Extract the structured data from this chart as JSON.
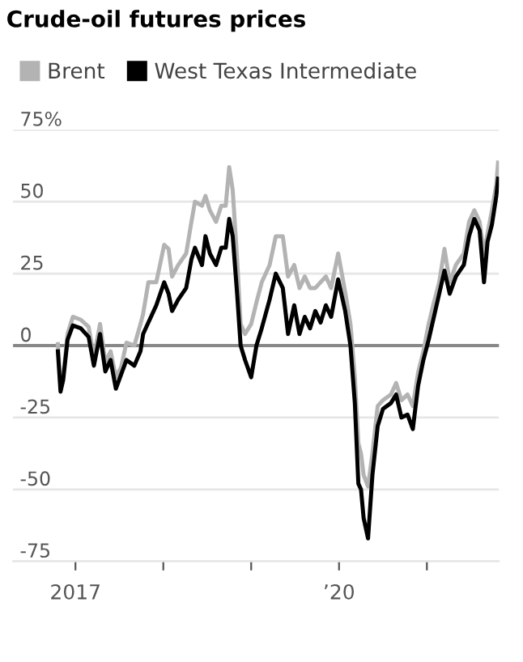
{
  "chart_data": {
    "type": "line",
    "title": "Crude-oil futures prices",
    "x": [
      2016.8,
      2016.83,
      2016.86,
      2016.91,
      2016.97,
      2017.06,
      2017.15,
      2017.21,
      2017.28,
      2017.34,
      2017.4,
      2017.46,
      2017.52,
      2017.58,
      2017.67,
      2017.74,
      2017.77,
      2017.83,
      2017.92,
      2018.01,
      2018.06,
      2018.1,
      2018.17,
      2018.26,
      2018.32,
      2018.36,
      2018.44,
      2018.48,
      2018.53,
      2018.6,
      2018.66,
      2018.71,
      2018.75,
      2018.79,
      2018.84,
      2018.88,
      2018.93,
      2019.0,
      2019.06,
      2019.12,
      2019.21,
      2019.28,
      2019.36,
      2019.42,
      2019.49,
      2019.55,
      2019.61,
      2019.67,
      2019.73,
      2019.79,
      2019.85,
      2019.91,
      2019.99,
      2020.07,
      2020.13,
      2020.18,
      2020.22,
      2020.25,
      2020.28,
      2020.33,
      2020.38,
      2020.44,
      2020.5,
      2020.59,
      2020.65,
      2020.71,
      2020.78,
      2020.84,
      2020.9,
      2020.96,
      2021.02,
      2021.08,
      2021.14,
      2021.2,
      2021.26,
      2021.33,
      2021.42,
      2021.48,
      2021.54,
      2021.6,
      2021.65,
      2021.69,
      2021.74,
      2021.79,
      2021.81
    ],
    "series": [
      {
        "name": "Brent",
        "color": "#b3b3b3",
        "values": [
          0.5,
          -14,
          -11,
          4,
          10,
          9,
          6.5,
          -4,
          7.5,
          -6,
          -2,
          -11,
          -7.5,
          1,
          0,
          7.5,
          11,
          22,
          22,
          35,
          33.6,
          24,
          28,
          32,
          43,
          50,
          48.6,
          52,
          47,
          43,
          48.6,
          48.6,
          62,
          54,
          30,
          7.5,
          4,
          7.5,
          15,
          22,
          28,
          38,
          38,
          24,
          28,
          20,
          24,
          20,
          20,
          22,
          24,
          20,
          32,
          18.6,
          7.5,
          -11,
          -34,
          -37.5,
          -45,
          -49,
          -37.5,
          -21,
          -19,
          -17,
          -13,
          -19,
          -17,
          -21,
          -9.4,
          -2,
          7.5,
          15,
          22,
          33.6,
          22,
          28,
          32,
          43,
          47,
          43,
          32,
          39,
          47,
          56,
          63.6
        ]
      },
      {
        "name": "West Texas Intermediate",
        "color": "#000000",
        "values": [
          -2,
          -16,
          -12,
          2,
          7,
          6,
          3,
          -7,
          4,
          -9,
          -5,
          -15,
          -10,
          -5,
          -7,
          -2,
          4,
          8,
          14,
          22,
          18,
          12,
          16,
          20,
          30,
          34,
          28,
          38,
          32,
          28,
          34,
          34,
          44,
          38,
          18,
          0,
          -5,
          -11,
          0,
          6,
          16,
          25,
          20,
          4,
          14,
          4,
          10,
          6,
          12,
          8,
          14,
          10,
          23,
          12,
          0,
          -20,
          -48,
          -50,
          -60,
          -67,
          -45,
          -28,
          -22,
          -20,
          -17,
          -25,
          -24,
          -29,
          -14,
          -5,
          2,
          10,
          18,
          26,
          18,
          24,
          28,
          38,
          44,
          40,
          22,
          36,
          42,
          52,
          58
        ]
      }
    ],
    "xlim": [
      2016.29,
      2021.82
    ],
    "xticks": [
      {
        "value": 2017,
        "label": "2017"
      },
      {
        "value": 2018,
        "label": null
      },
      {
        "value": 2019,
        "label": null
      },
      {
        "value": 2020,
        "label": "’20"
      },
      {
        "value": 2021,
        "label": null
      }
    ],
    "ylim": [
      -75,
      75
    ],
    "yticks": [
      {
        "value": 75,
        "label": "75%"
      },
      50,
      25,
      0,
      -25,
      -50,
      -75
    ],
    "ref_lines": [
      {
        "axis": "y",
        "value": 0,
        "color": "#888888"
      }
    ],
    "grid": "y",
    "legend": "top left",
    "marker": "none",
    "line_style": "solid"
  }
}
